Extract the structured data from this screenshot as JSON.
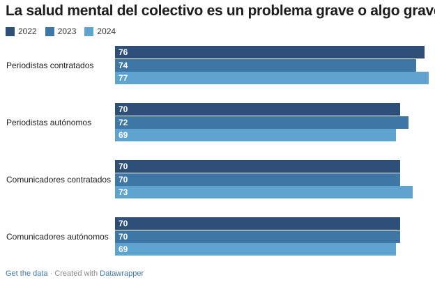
{
  "chart_data": {
    "type": "bar",
    "orientation": "horizontal",
    "title": "La salud mental del colectivo es un problema grave o algo grave",
    "categories": [
      "Periodistas contratados",
      "Periodistas autónomos",
      "Comunicadores contratados",
      "Comunicadores autónomos"
    ],
    "series": [
      {
        "name": "2022",
        "color": "#2e4f78",
        "values": [
          76,
          70,
          70,
          70
        ]
      },
      {
        "name": "2023",
        "color": "#3e76a6",
        "values": [
          74,
          72,
          70,
          70
        ]
      },
      {
        "name": "2024",
        "color": "#5fa4d0",
        "values": [
          77,
          69,
          73,
          69
        ]
      }
    ],
    "xlim": [
      0,
      77
    ],
    "legend": "top-left",
    "grid": false
  },
  "footer": {
    "get_data": "Get the data",
    "separator": " · Created with ",
    "credit": "Datawrapper"
  }
}
